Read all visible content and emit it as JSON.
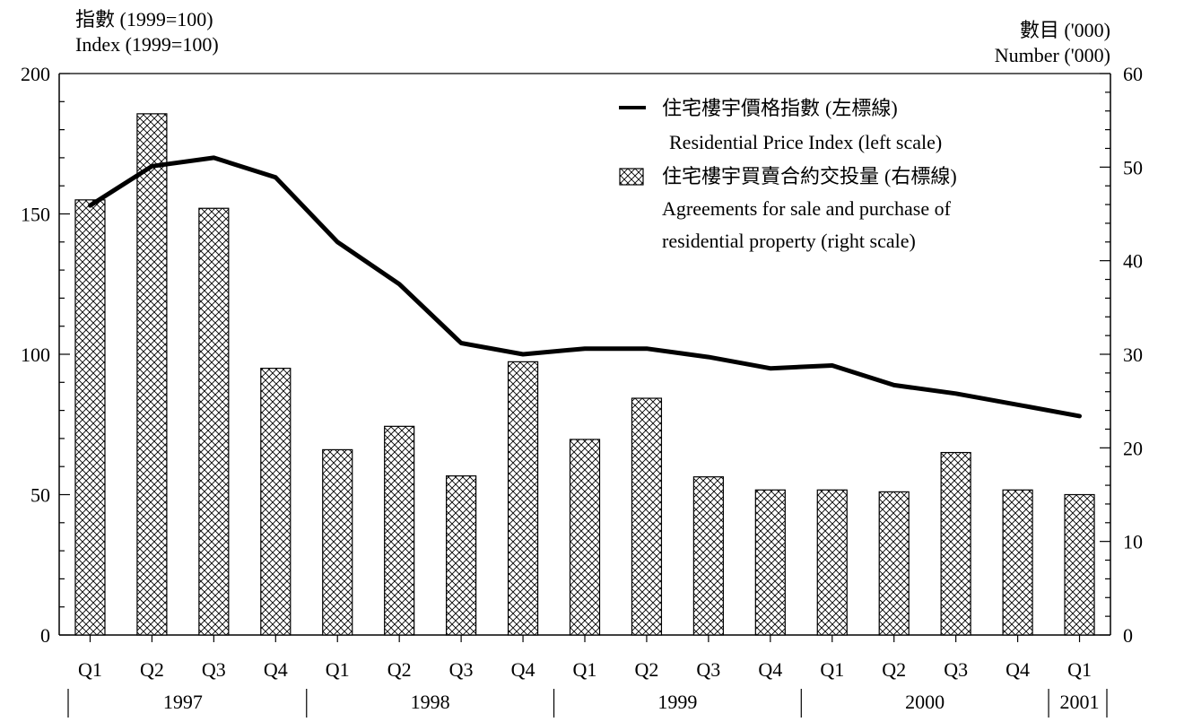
{
  "chart_data": {
    "type": "bar",
    "categories": [
      "Q1",
      "Q2",
      "Q3",
      "Q4",
      "Q1",
      "Q2",
      "Q3",
      "Q4",
      "Q1",
      "Q2",
      "Q3",
      "Q4",
      "Q1",
      "Q2",
      "Q3",
      "Q4",
      "Q1"
    ],
    "years": [
      {
        "label": "1997",
        "start": 0,
        "end": 3
      },
      {
        "label": "1998",
        "start": 4,
        "end": 7
      },
      {
        "label": "1999",
        "start": 8,
        "end": 11
      },
      {
        "label": "2000",
        "start": 12,
        "end": 15
      },
      {
        "label": "2001",
        "start": 16,
        "end": 16
      }
    ],
    "left_axis": {
      "title_zh": "指數 (1999=100)",
      "title_en": "Index (1999=100)",
      "ylim": [
        0,
        200
      ],
      "ticks": [
        0,
        50,
        100,
        150,
        200
      ]
    },
    "right_axis": {
      "title_zh": "數目 ('000)",
      "title_en": "Number ('000)",
      "ylim": [
        0,
        60
      ],
      "ticks": [
        0,
        10,
        20,
        30,
        40,
        50,
        60
      ]
    },
    "series": [
      {
        "name_zh": "住宅樓宇價格指數",
        "name_zh_note": "(左標線)",
        "name_en": "Residential Price Index (left scale)",
        "type": "line",
        "axis": "left",
        "values": [
          153,
          167,
          170,
          163,
          140,
          125,
          104,
          100,
          102,
          102,
          99,
          95,
          96,
          89,
          86,
          82,
          78
        ]
      },
      {
        "name_zh": "住宅樓宇買賣合約交投量",
        "name_zh_note": "(右標線)",
        "name_en_lines": [
          "Agreements for sale and purchase of",
          "residential property (right scale)"
        ],
        "type": "bar",
        "axis": "right",
        "values": [
          46.5,
          55.7,
          45.6,
          28.5,
          19.8,
          22.3,
          17.0,
          29.2,
          20.9,
          25.3,
          16.9,
          15.5,
          15.5,
          15.3,
          19.5,
          15.5,
          15.0
        ]
      }
    ],
    "grid": false,
    "legend": "top-right"
  },
  "colors": {
    "line": "#000000",
    "bar_fill": "#ffffff",
    "hatch": "#000000"
  }
}
